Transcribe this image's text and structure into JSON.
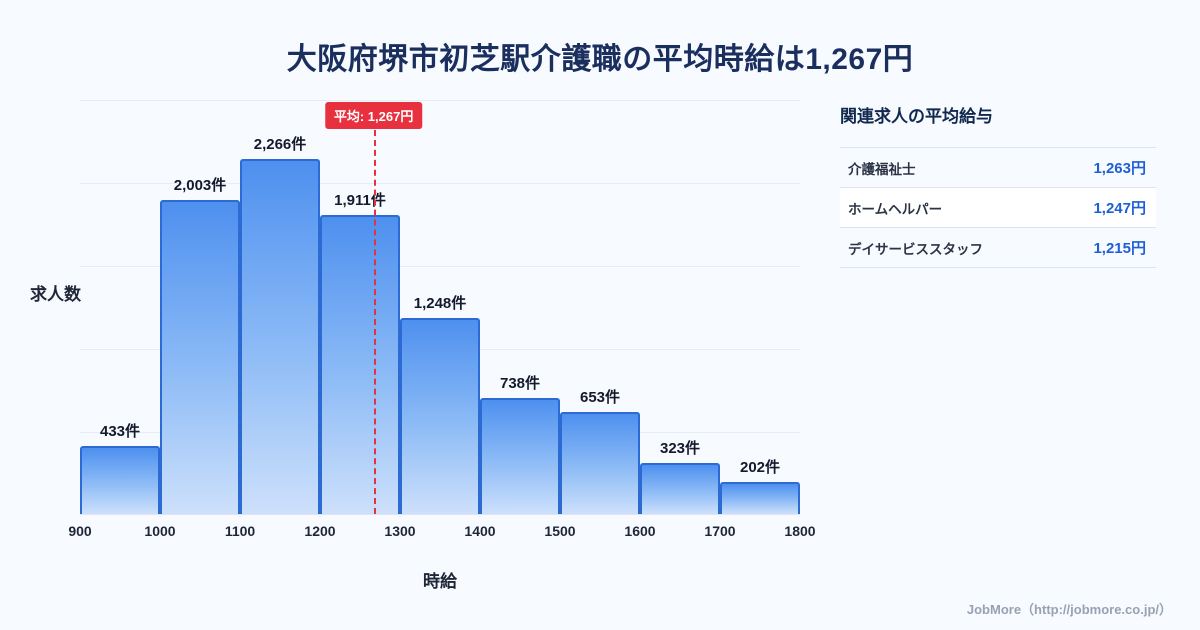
{
  "title": "大阪府堺市初芝駅介護職の平均時給は1,267円",
  "chart_data": {
    "type": "bar",
    "categories": [
      "900-1000",
      "1000-1100",
      "1100-1200",
      "1200-1300",
      "1300-1400",
      "1400-1500",
      "1500-1600",
      "1600-1700",
      "1700-1800"
    ],
    "values": [
      433,
      2003,
      2266,
      1911,
      1248,
      738,
      653,
      323,
      202
    ],
    "labels": [
      "433件",
      "2,003件",
      "2,266件",
      "1,911件",
      "1,248件",
      "738件",
      "653件",
      "323件",
      "202件"
    ],
    "x_ticks": [
      "900",
      "1000",
      "1100",
      "1200",
      "1300",
      "1400",
      "1500",
      "1600",
      "1700",
      "1800"
    ],
    "x_range": [
      900,
      1800
    ],
    "ylim": [
      0,
      2266
    ],
    "xlabel": "時給",
    "ylabel": "求人数",
    "mean": 1267,
    "mean_label": "平均: 1,267円",
    "grid": "horizontal",
    "legend": "none"
  },
  "side_panel": {
    "heading": "関連求人の平均給与",
    "rows": [
      {
        "label": "介護福祉士",
        "value": "1,263円"
      },
      {
        "label": "ホームヘルパー",
        "value": "1,247円"
      },
      {
        "label": "デイサービススタッフ",
        "value": "1,215円"
      }
    ]
  },
  "footer": {
    "credit": "JobMore（http://jobmore.co.jp/）"
  },
  "colors": {
    "background": "#f7fafe",
    "title_navy": "#1b2f5e",
    "bar_top": "#4e90ef",
    "bar_bottom": "#cde0fb",
    "bar_border": "#2c6bd3",
    "mean_red": "#e8313f",
    "value_blue": "#1d5fd6",
    "gridline": "#e7edf7",
    "credit_gray": "#99a2b2"
  }
}
